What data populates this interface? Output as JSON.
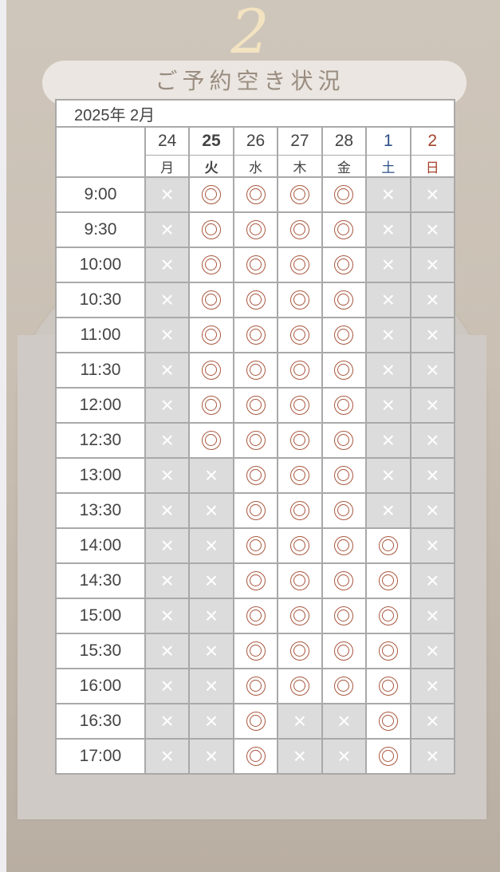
{
  "header": {
    "step_number": "2",
    "title": "ご予約空き状況"
  },
  "calendar": {
    "month_label": "2025年 2月",
    "days": [
      {
        "date": "24",
        "dow": "月",
        "type": "weekday"
      },
      {
        "date": "25",
        "dow": "火",
        "type": "today"
      },
      {
        "date": "26",
        "dow": "水",
        "type": "weekday"
      },
      {
        "date": "27",
        "dow": "木",
        "type": "weekday"
      },
      {
        "date": "28",
        "dow": "金",
        "type": "weekday"
      },
      {
        "date": "1",
        "dow": "土",
        "type": "sat"
      },
      {
        "date": "2",
        "dow": "日",
        "type": "sun"
      }
    ],
    "symbols": {
      "available": "◎",
      "unavailable": "×"
    },
    "colors": {
      "available": "#a8583f",
      "unavailable_bg": "#dcdcdc",
      "saturday": "#2d4f86",
      "sunday": "#a3432a"
    },
    "slots": [
      {
        "time": "9:00",
        "avail": [
          0,
          1,
          1,
          1,
          1,
          0,
          0
        ]
      },
      {
        "time": "9:30",
        "avail": [
          0,
          1,
          1,
          1,
          1,
          0,
          0
        ]
      },
      {
        "time": "10:00",
        "avail": [
          0,
          1,
          1,
          1,
          1,
          0,
          0
        ]
      },
      {
        "time": "10:30",
        "avail": [
          0,
          1,
          1,
          1,
          1,
          0,
          0
        ]
      },
      {
        "time": "11:00",
        "avail": [
          0,
          1,
          1,
          1,
          1,
          0,
          0
        ]
      },
      {
        "time": "11:30",
        "avail": [
          0,
          1,
          1,
          1,
          1,
          0,
          0
        ]
      },
      {
        "time": "12:00",
        "avail": [
          0,
          1,
          1,
          1,
          1,
          0,
          0
        ]
      },
      {
        "time": "12:30",
        "avail": [
          0,
          1,
          1,
          1,
          1,
          0,
          0
        ]
      },
      {
        "time": "13:00",
        "avail": [
          0,
          0,
          1,
          1,
          1,
          0,
          0
        ]
      },
      {
        "time": "13:30",
        "avail": [
          0,
          0,
          1,
          1,
          1,
          0,
          0
        ]
      },
      {
        "time": "14:00",
        "avail": [
          0,
          0,
          1,
          1,
          1,
          1,
          0
        ]
      },
      {
        "time": "14:30",
        "avail": [
          0,
          0,
          1,
          1,
          1,
          1,
          0
        ]
      },
      {
        "time": "15:00",
        "avail": [
          0,
          0,
          1,
          1,
          1,
          1,
          0
        ]
      },
      {
        "time": "15:30",
        "avail": [
          0,
          0,
          1,
          1,
          1,
          1,
          0
        ]
      },
      {
        "time": "16:00",
        "avail": [
          0,
          0,
          1,
          1,
          1,
          1,
          0
        ]
      },
      {
        "time": "16:30",
        "avail": [
          0,
          0,
          1,
          0,
          0,
          1,
          0
        ]
      },
      {
        "time": "17:00",
        "avail": [
          0,
          0,
          1,
          0,
          0,
          1,
          0
        ]
      }
    ]
  }
}
